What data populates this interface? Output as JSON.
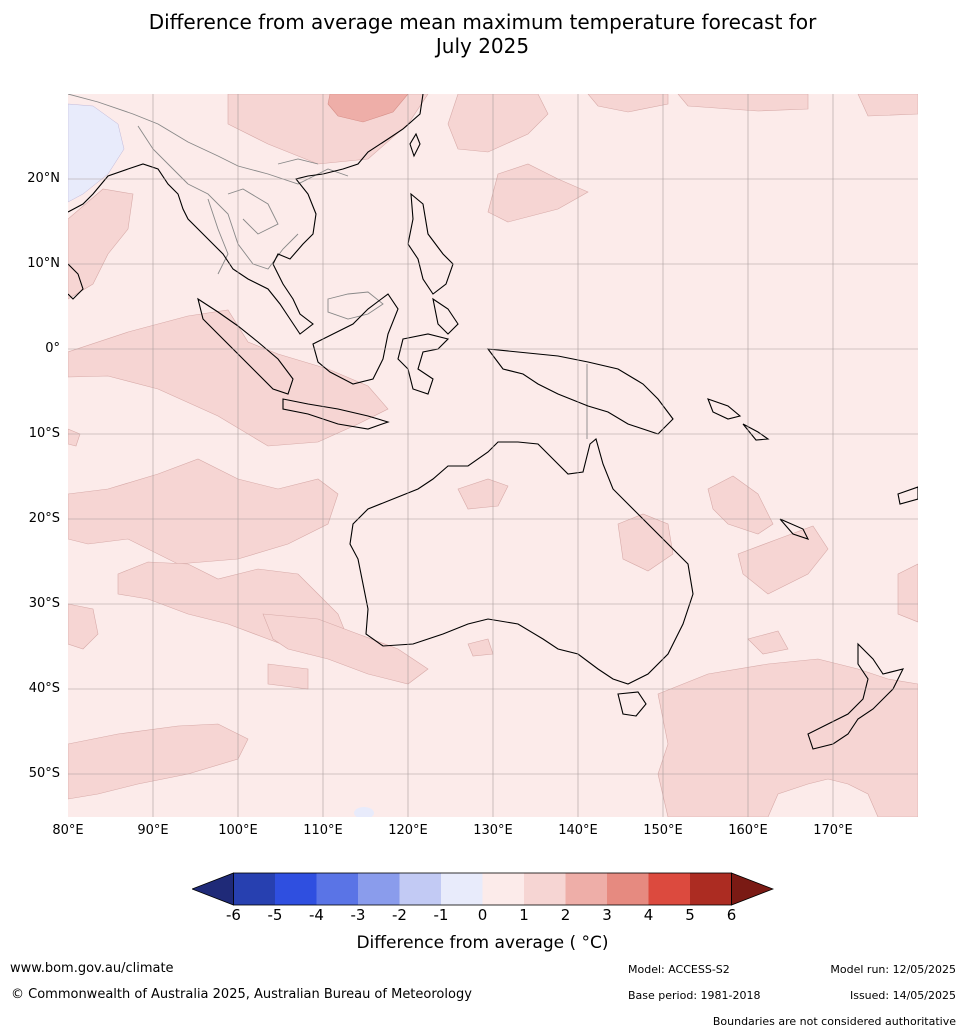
{
  "title": {
    "line1": "Difference from average mean maximum temperature forecast for",
    "line2": "July 2025"
  },
  "map": {
    "lat_labels": [
      "20°N",
      "10°N",
      "0°",
      "10°S",
      "20°S",
      "30°S",
      "40°S",
      "50°S"
    ],
    "lon_labels": [
      "80°E",
      "90°E",
      "100°E",
      "110°E",
      "120°E",
      "130°E",
      "140°E",
      "150°E",
      "160°E",
      "170°E"
    ],
    "background_anomaly_bin": "0 to 1",
    "colors": {
      "land_outline": "#000000",
      "border_outline": "#888888",
      "gridline": "#a89c9c"
    }
  },
  "colorbar": {
    "label": "Difference from average ( °C)",
    "ticks": [
      "-6",
      "-5",
      "-4",
      "-3",
      "-2",
      "-1",
      "0",
      "1",
      "2",
      "3",
      "4",
      "5",
      "6"
    ],
    "colors": [
      "#1f2a78",
      "#2740b0",
      "#2f4fe0",
      "#5a74e6",
      "#8a9cec",
      "#c2caf4",
      "#e8ebfb",
      "#fcebea",
      "#f6d5d3",
      "#eeaea8",
      "#e68a80",
      "#dc4a3e",
      "#ac2c22",
      "#7a1a14"
    ]
  },
  "footer": {
    "website": "www.bom.gov.au/climate",
    "copyright": "© Commonwealth of Australia 2025, Australian Bureau of Meteorology",
    "model": "Model: ACCESS-S2",
    "base_period": "Base period: 1981-2018",
    "model_run": "Model run: 12/05/2025",
    "issued": "Issued: 14/05/2025",
    "disclaimer": "Boundaries are not considered authoritative"
  }
}
